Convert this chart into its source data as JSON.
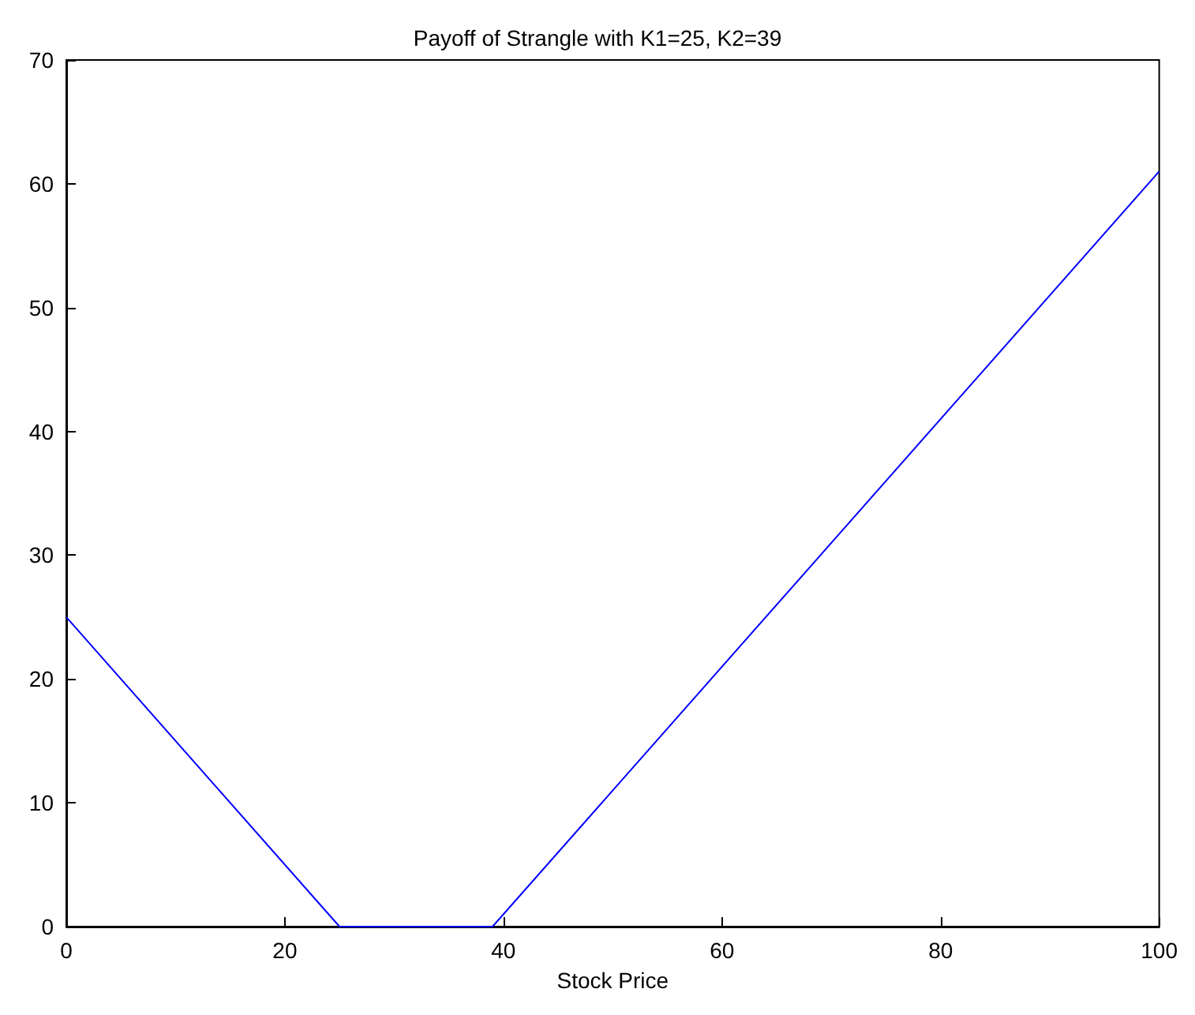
{
  "chart_data": {
    "type": "line",
    "title": "Payoff of Strangle with K1=25, K2=39",
    "xlabel": "Stock Price",
    "x": [
      0,
      25,
      39,
      100
    ],
    "series": [
      {
        "color": "#0000ff",
        "values": [
          25,
          0,
          0,
          61
        ]
      }
    ],
    "xlim": [
      0,
      100
    ],
    "xticks": [
      0,
      20,
      40,
      60,
      80,
      100
    ],
    "ylim": [
      0,
      70
    ],
    "yticks": [
      0,
      10,
      20,
      30,
      40,
      50,
      60,
      70
    ],
    "grid": false,
    "marker": "none",
    "line_style": "solid"
  }
}
